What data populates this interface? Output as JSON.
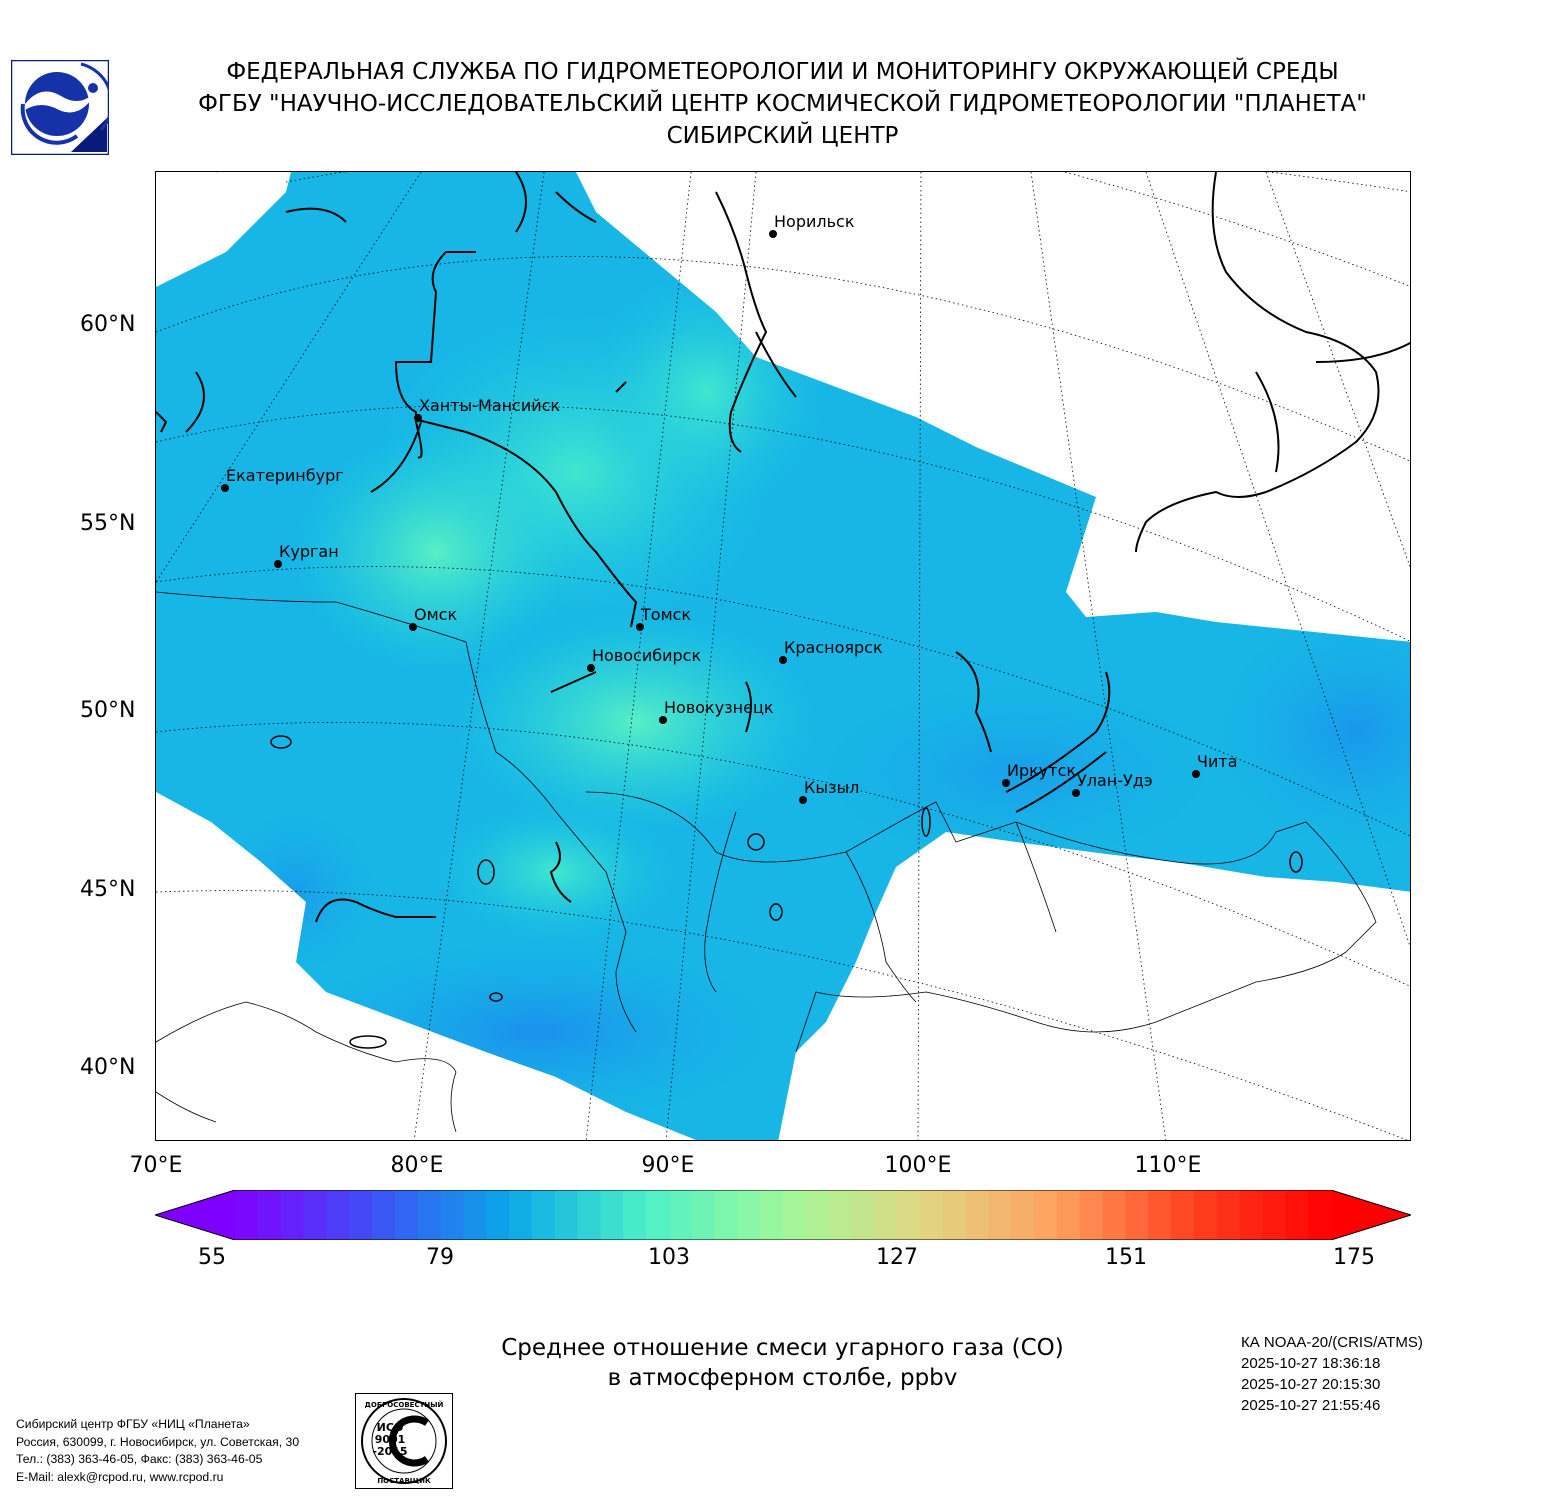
{
  "header": {
    "line1": "ФЕДЕРАЛЬНАЯ СЛУЖБА ПО ГИДРОМЕТЕОРОЛОГИИ И МОНИТОРИНГУ ОКРУЖАЮЩЕЙ СРЕДЫ",
    "line2": "ФГБУ \"НАУЧНО-ИССЛЕДОВАТЕЛЬСКИЙ ЦЕНТР КОСМИЧЕСКОЙ ГИДРОМЕТЕОРОЛОГИИ \"ПЛАНЕТА\"",
    "line3": "СИБИРСКИЙ ЦЕНТР"
  },
  "map": {
    "lat_labels": [
      "60°N",
      "55°N",
      "50°N",
      "45°N",
      "40°N"
    ],
    "lon_labels": [
      "70°E",
      "80°E",
      "90°E",
      "100°E",
      "110°E"
    ],
    "cities": [
      {
        "name": "Норильск"
      },
      {
        "name": "Ханты-Мансийск"
      },
      {
        "name": "Екатеринбург"
      },
      {
        "name": "Курган"
      },
      {
        "name": "Омск"
      },
      {
        "name": "Томск"
      },
      {
        "name": "Новосибирск"
      },
      {
        "name": "Красноярск"
      },
      {
        "name": "Новокузнецк"
      },
      {
        "name": "Кызыл"
      },
      {
        "name": "Иркутск"
      },
      {
        "name": "Улан-Удэ"
      },
      {
        "name": "Чита"
      }
    ]
  },
  "colorbar": {
    "min": 55,
    "max": 175,
    "ticks": [
      "55",
      "79",
      "103",
      "127",
      "151",
      "175"
    ],
    "colors": [
      "#7f00ff",
      "#3e50f5",
      "#0aa8e8",
      "#4cf0c8",
      "#9ef89a",
      "#e0d884",
      "#ffa060",
      "#ff4020",
      "#ff0000"
    ]
  },
  "caption": {
    "line1": "Среднее отношение смеси угарного газа (CO)",
    "line2": "в атмосферном столбе, ppbv"
  },
  "satellite": {
    "name": "КА NOAA-20/(CRIS/ATMS)",
    "times": [
      "2025-10-27 18:36:18",
      "2025-10-27 20:15:30",
      "2025-10-27 21:55:46"
    ]
  },
  "contact": {
    "line1": "Сибирский центр ФГБУ «НИЦ «Планета»",
    "line2": "Россия, 630099, г. Новосибирск, ул. Советская, 30",
    "line3": "Тел.: (383) 363-46-05, Факс: (383) 363-46-05",
    "line4": "E-Mail: alexk@rcpod.ru, www.rcpod.ru"
  },
  "iso_badge": {
    "top": "ДОБРОСОВЕСТНЫЙ",
    "line1": "ИСО",
    "line2": "9001",
    "line3": "-2015",
    "bottom": "ПОСТАВЩИК"
  },
  "logo": {
    "icon": "planeta-logo-icon"
  }
}
